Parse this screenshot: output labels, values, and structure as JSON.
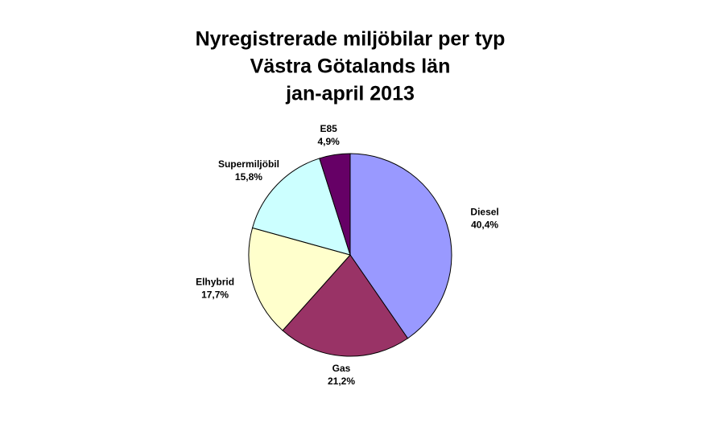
{
  "chart_data": {
    "type": "pie",
    "title": [
      "Nyregistrerade miljöbilar per typ",
      "Västra Götalands län",
      "jan-april 2013"
    ],
    "categories": [
      "Diesel",
      "Gas",
      "Elhybrid",
      "Supermiljöbil",
      "E85"
    ],
    "values": [
      40.4,
      21.2,
      17.7,
      15.8,
      4.9
    ],
    "value_labels": [
      "40,4%",
      "21,2%",
      "17,7%",
      "15,8%",
      "4,9%"
    ],
    "colors": [
      "#9999ff",
      "#993366",
      "#ffffcc",
      "#ccffff",
      "#660066"
    ]
  }
}
